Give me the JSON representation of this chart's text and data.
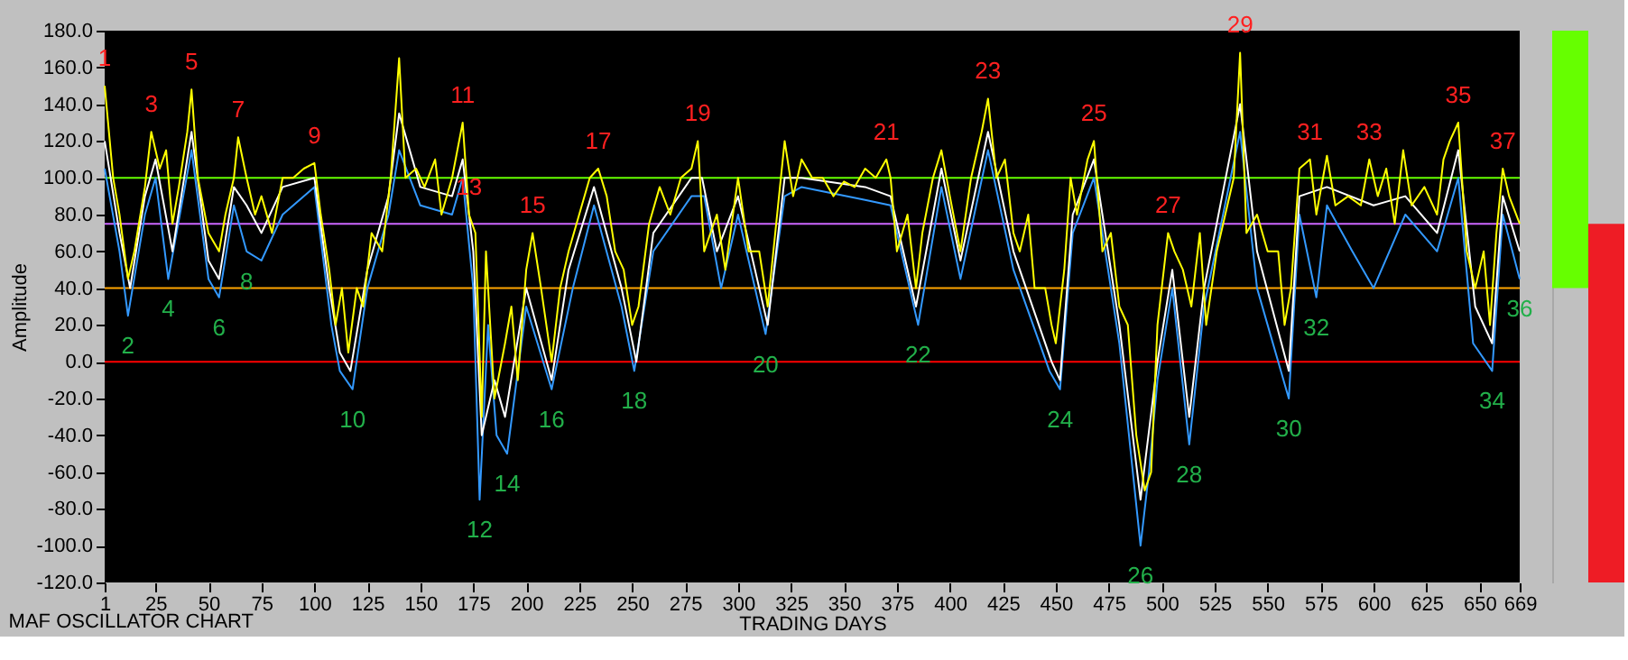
{
  "chart_data": [
    {
      "type": "line",
      "title": "MAF OSCILLATOR CHART",
      "xlabel": "TRADING DAYS",
      "ylabel": "Amplitude",
      "xlim": [
        1,
        669
      ],
      "xticks": [
        1,
        25,
        50,
        75,
        100,
        125,
        150,
        175,
        200,
        225,
        250,
        275,
        300,
        325,
        350,
        375,
        400,
        425,
        450,
        475,
        500,
        525,
        550,
        575,
        600,
        625,
        650,
        669
      ],
      "ylim": [
        -120,
        180
      ],
      "yticks": [
        {
          "value": -120,
          "label": "-120.0"
        },
        {
          "value": -100,
          "label": "-100.0"
        },
        {
          "value": -80,
          "label": "-80.0"
        },
        {
          "value": -60,
          "label": "-60.0"
        },
        {
          "value": -40,
          "label": "-40.0"
        },
        {
          "value": -20,
          "label": "-20.0"
        },
        {
          "value": 0,
          "label": "0.0"
        },
        {
          "value": 20,
          "label": "20.0"
        },
        {
          "value": 40,
          "label": "40.0"
        },
        {
          "value": 60,
          "label": "60.0"
        },
        {
          "value": 80,
          "label": "80.0"
        },
        {
          "value": 100,
          "label": "100.0"
        },
        {
          "value": 120,
          "label": "120.0"
        },
        {
          "value": 140,
          "label": "140.0"
        },
        {
          "value": 160,
          "label": "160.0"
        },
        {
          "value": 180,
          "label": "180.0"
        }
      ],
      "grid": false,
      "line_style": "solid",
      "marker": "none",
      "series": [
        {
          "color": "#ffff00",
          "x": [
            1,
            5,
            8,
            12,
            15,
            20,
            23,
            27,
            30,
            33,
            36,
            40,
            42,
            45,
            50,
            55,
            58,
            62,
            64,
            68,
            72,
            75,
            80,
            85,
            90,
            95,
            100,
            103,
            107,
            110,
            113,
            116,
            120,
            123,
            127,
            132,
            136,
            140,
            143,
            148,
            152,
            157,
            160,
            165,
            170,
            173,
            176,
            179,
            181,
            185,
            190,
            193,
            196,
            200,
            203,
            207,
            212,
            216,
            220,
            225,
            230,
            234,
            238,
            242,
            246,
            250,
            253,
            258,
            263,
            268,
            273,
            278,
            281,
            284,
            290,
            294,
            300,
            305,
            310,
            314,
            318,
            322,
            326,
            330,
            335,
            340,
            345,
            350,
            355,
            360,
            365,
            370,
            372,
            375,
            380,
            384,
            387,
            392,
            396,
            400,
            405,
            410,
            415,
            418,
            422,
            426,
            430,
            433,
            437,
            440,
            445,
            448,
            450,
            454,
            457,
            460,
            465,
            468,
            472,
            476,
            480,
            484,
            488,
            492,
            495,
            498,
            503,
            506,
            510,
            514,
            518,
            521,
            526,
            530,
            534,
            537,
            540,
            545,
            550,
            555,
            558,
            561,
            565,
            570,
            573,
            578,
            582,
            588,
            594,
            598,
            602,
            606,
            610,
            614,
            618,
            624,
            630,
            633,
            636,
            640,
            644,
            648,
            652,
            655,
            658,
            661,
            664,
            669
          ],
          "values": [
            150,
            100,
            80,
            45,
            60,
            95,
            125,
            105,
            115,
            75,
            95,
            125,
            148,
            100,
            70,
            60,
            80,
            100,
            122,
            100,
            80,
            90,
            70,
            100,
            100,
            105,
            108,
            80,
            50,
            20,
            40,
            5,
            40,
            30,
            70,
            60,
            100,
            165,
            100,
            105,
            95,
            110,
            80,
            100,
            130,
            80,
            70,
            -30,
            60,
            -20,
            10,
            30,
            -10,
            50,
            70,
            40,
            0,
            40,
            60,
            80,
            100,
            105,
            90,
            60,
            50,
            20,
            30,
            75,
            95,
            80,
            100,
            105,
            120,
            60,
            80,
            50,
            100,
            60,
            60,
            30,
            75,
            120,
            90,
            110,
            100,
            100,
            90,
            98,
            95,
            105,
            100,
            110,
            100,
            60,
            80,
            40,
            70,
            100,
            115,
            90,
            60,
            100,
            125,
            143,
            100,
            110,
            70,
            60,
            80,
            40,
            40,
            20,
            10,
            50,
            100,
            80,
            110,
            120,
            60,
            70,
            30,
            20,
            -40,
            -70,
            -60,
            20,
            70,
            60,
            50,
            30,
            70,
            20,
            60,
            80,
            100,
            168,
            70,
            80,
            60,
            60,
            20,
            40,
            105,
            110,
            80,
            112,
            85,
            90,
            85,
            110,
            90,
            105,
            75,
            115,
            85,
            95,
            80,
            110,
            120,
            130,
            60,
            40,
            60,
            20,
            70,
            105,
            90,
            75
          ]
        },
        {
          "color": "#ffffff",
          "x": [
            1,
            8,
            13,
            20,
            25,
            33,
            42,
            50,
            55,
            62,
            68,
            75,
            85,
            100,
            107,
            112,
            117,
            125,
            135,
            140,
            150,
            165,
            170,
            175,
            179,
            185,
            190,
            200,
            212,
            220,
            232,
            245,
            252,
            260,
            278,
            283,
            290,
            300,
            314,
            322,
            330,
            360,
            372,
            384,
            396,
            405,
            418,
            430,
            448,
            452,
            458,
            468,
            480,
            490,
            498,
            505,
            513,
            520,
            537,
            545,
            560,
            565,
            578,
            600,
            615,
            630,
            640,
            648,
            656,
            661,
            669
          ],
          "values": [
            120,
            70,
            40,
            90,
            110,
            60,
            125,
            55,
            45,
            95,
            85,
            70,
            95,
            100,
            40,
            5,
            -5,
            50,
            90,
            135,
            95,
            90,
            110,
            60,
            -40,
            -10,
            -30,
            40,
            -10,
            50,
            95,
            40,
            0,
            70,
            100,
            100,
            60,
            90,
            20,
            100,
            100,
            95,
            90,
            30,
            105,
            55,
            125,
            60,
            0,
            -10,
            80,
            110,
            20,
            -75,
            0,
            50,
            -30,
            40,
            140,
            60,
            -5,
            90,
            95,
            85,
            90,
            70,
            115,
            30,
            10,
            90,
            60
          ]
        },
        {
          "color": "#3399ff",
          "x": [
            1,
            8,
            12,
            20,
            25,
            31,
            42,
            50,
            55,
            62,
            68,
            75,
            85,
            100,
            108,
            112,
            118,
            125,
            135,
            140,
            150,
            165,
            170,
            175,
            178,
            182,
            186,
            191,
            200,
            212,
            222,
            232,
            245,
            251,
            260,
            278,
            284,
            292,
            300,
            313,
            322,
            330,
            360,
            372,
            385,
            396,
            405,
            418,
            430,
            447,
            452,
            458,
            468,
            480,
            490,
            494,
            498,
            505,
            513,
            520,
            537,
            545,
            560,
            565,
            573,
            578,
            590,
            600,
            615,
            630,
            640,
            647,
            656,
            661,
            669
          ],
          "values": [
            105,
            60,
            25,
            80,
            100,
            45,
            115,
            45,
            35,
            85,
            60,
            55,
            80,
            95,
            20,
            -5,
            -15,
            40,
            80,
            115,
            85,
            80,
            100,
            40,
            -75,
            20,
            -40,
            -50,
            30,
            -15,
            40,
            85,
            30,
            -5,
            60,
            90,
            90,
            40,
            80,
            15,
            90,
            95,
            88,
            85,
            20,
            95,
            45,
            115,
            50,
            -5,
            -15,
            70,
            100,
            10,
            -100,
            -60,
            -10,
            40,
            -45,
            30,
            125,
            40,
            -20,
            80,
            35,
            85,
            60,
            40,
            80,
            60,
            100,
            10,
            -5,
            80,
            45
          ]
        }
      ],
      "ref_lines": [
        {
          "axis": "y",
          "value": 100,
          "color": "#66ff00"
        },
        {
          "axis": "y",
          "value": 75,
          "color": "#cc66ff"
        },
        {
          "axis": "y",
          "value": 40,
          "color": "#ffa500"
        },
        {
          "axis": "y",
          "value": 0,
          "color": "#ff0000"
        }
      ],
      "annotations": [
        {
          "text": "1",
          "x": 1,
          "y": 150
        },
        {
          "text": "2",
          "x": 12,
          "y": 25
        },
        {
          "text": "3",
          "x": 23,
          "y": 125
        },
        {
          "text": "4",
          "x": 31,
          "y": 45
        },
        {
          "text": "5",
          "x": 42,
          "y": 148
        },
        {
          "text": "6",
          "x": 55,
          "y": 35
        },
        {
          "text": "7",
          "x": 64,
          "y": 122
        },
        {
          "text": "8",
          "x": 68,
          "y": 60
        },
        {
          "text": "9",
          "x": 100,
          "y": 108
        },
        {
          "text": "10",
          "x": 118,
          "y": -15
        },
        {
          "text": "11",
          "x": 170,
          "y": 130
        },
        {
          "text": "12",
          "x": 178,
          "y": -75
        },
        {
          "text": "13",
          "x": 173,
          "y": 80
        },
        {
          "text": "14",
          "x": 191,
          "y": -50
        },
        {
          "text": "15",
          "x": 203,
          "y": 70
        },
        {
          "text": "16",
          "x": 212,
          "y": -15
        },
        {
          "text": "17",
          "x": 234,
          "y": 105
        },
        {
          "text": "18",
          "x": 251,
          "y": -5
        },
        {
          "text": "19",
          "x": 281,
          "y": 120
        },
        {
          "text": "20",
          "x": 313,
          "y": 15
        },
        {
          "text": "21",
          "x": 370,
          "y": 110
        },
        {
          "text": "22",
          "x": 385,
          "y": 20
        },
        {
          "text": "23",
          "x": 418,
          "y": 143
        },
        {
          "text": "24",
          "x": 452,
          "y": -15
        },
        {
          "text": "25",
          "x": 468,
          "y": 120
        },
        {
          "text": "26",
          "x": 490,
          "y": -100
        },
        {
          "text": "27",
          "x": 503,
          "y": 70
        },
        {
          "text": "28",
          "x": 513,
          "y": -45
        },
        {
          "text": "29",
          "x": 537,
          "y": 168
        },
        {
          "text": "30",
          "x": 560,
          "y": -20
        },
        {
          "text": "31",
          "x": 570,
          "y": 110
        },
        {
          "text": "32",
          "x": 573,
          "y": 35
        },
        {
          "text": "33",
          "x": 598,
          "y": 110
        },
        {
          "text": "34",
          "x": 656,
          "y": -5
        },
        {
          "text": "35",
          "x": 640,
          "y": 130
        },
        {
          "text": "36",
          "x": 669,
          "y": 45
        },
        {
          "text": "37",
          "x": 661,
          "y": 105
        }
      ]
    },
    {
      "type": "bar",
      "categories": [
        null,
        null
      ],
      "base": [
        40,
        -120
      ],
      "values": [
        140,
        195
      ],
      "colors": [
        "#66ff00",
        "#ee1c25"
      ],
      "ylim": [
        -120,
        180
      ],
      "tick_labels": false
    }
  ]
}
